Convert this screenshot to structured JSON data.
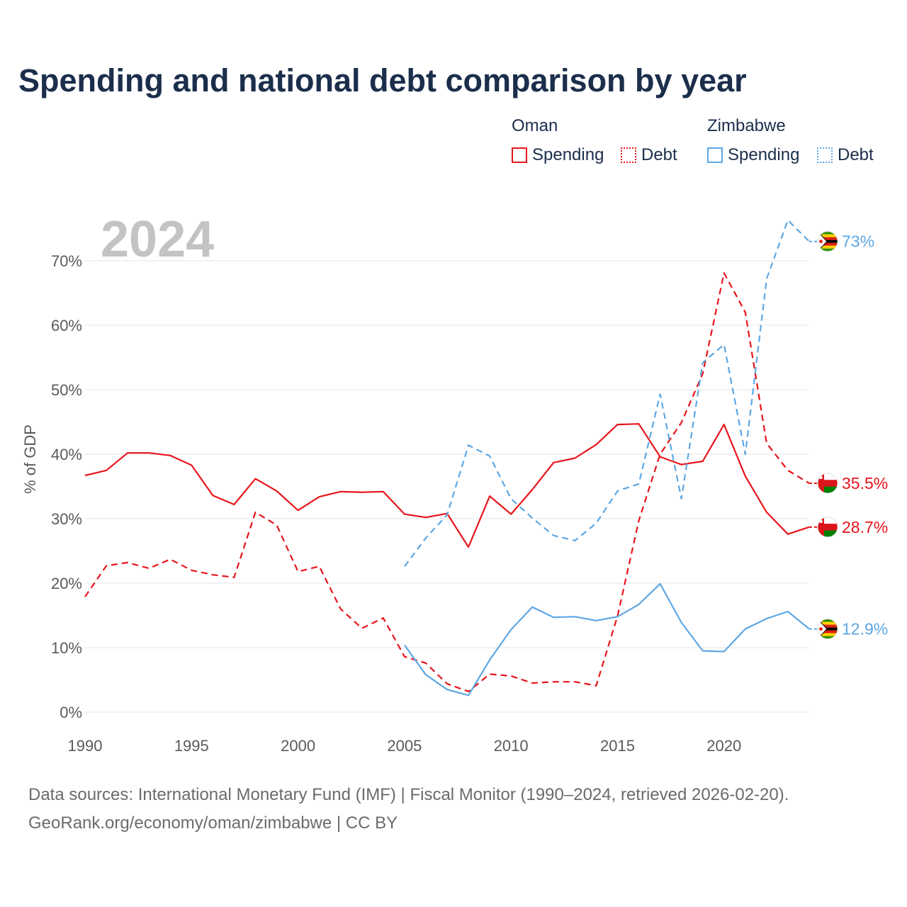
{
  "title": "Spending and national debt comparison by year",
  "colors": {
    "oman": "#e8141b",
    "zimbabwe": "#5da7e4",
    "grid": "#e6e6e6",
    "text": "#1b2e4b",
    "muted": "#6b6b6b",
    "watermark": "#c3c3c3"
  },
  "legend": {
    "oman": {
      "title": "Oman",
      "spending": "Spending",
      "debt": "Debt"
    },
    "zimbabwe": {
      "title": "Zimbabwe",
      "spending": "Spending",
      "debt": "Debt"
    }
  },
  "footer": {
    "line1": "Data sources: International Monetary Fund (IMF) | Fiscal Monitor (1990–2024, retrieved 2026-02-20).",
    "line2": "GeoRank.org/economy/oman/zimbabwe | CC BY"
  },
  "chart_data": {
    "type": "line",
    "title": "Spending and national debt comparison by year",
    "current_year_label": "2024",
    "ylabel": "% of GDP",
    "xlabel": "",
    "xlim": [
      1990,
      2024
    ],
    "ylim": [
      0,
      77
    ],
    "y_ticks": [
      0,
      10,
      20,
      30,
      40,
      50,
      60,
      70
    ],
    "y_tick_labels": [
      "0%",
      "10%",
      "20%",
      "30%",
      "40%",
      "50%",
      "60%",
      "70%"
    ],
    "x_ticks": [
      1990,
      1995,
      2000,
      2005,
      2010,
      2015,
      2020
    ],
    "x_tick_labels": [
      "1990",
      "1995",
      "2000",
      "2005",
      "2010",
      "2015",
      "2020"
    ],
    "grid": true,
    "series": [
      {
        "name": "Oman Spending",
        "country": "oman",
        "style": "solid",
        "x": [
          1990,
          1991,
          1992,
          1993,
          1994,
          1995,
          1996,
          1997,
          1998,
          1999,
          2000,
          2001,
          2002,
          2003,
          2004,
          2005,
          2006,
          2007,
          2008,
          2009,
          2010,
          2011,
          2012,
          2013,
          2014,
          2015,
          2016,
          2017,
          2018,
          2019,
          2020,
          2021,
          2022,
          2023,
          2024
        ],
        "values": [
          36.7,
          37.5,
          40.2,
          40.2,
          39.8,
          38.3,
          33.6,
          32.2,
          36.2,
          34.3,
          31.3,
          33.4,
          34.2,
          34.1,
          34.2,
          30.7,
          30.2,
          30.8,
          25.6,
          33.5,
          30.7,
          34.5,
          38.7,
          39.4,
          41.5,
          44.6,
          44.7,
          39.6,
          38.4,
          38.9,
          44.6,
          36.6,
          31.0,
          27.6,
          28.7
        ],
        "end_label": "28.7%"
      },
      {
        "name": "Oman Debt",
        "country": "oman",
        "style": "dashed",
        "x": [
          1990,
          1991,
          1992,
          1993,
          1994,
          1995,
          1996,
          1997,
          1998,
          1999,
          2000,
          2001,
          2002,
          2003,
          2004,
          2005,
          2006,
          2007,
          2008,
          2009,
          2010,
          2011,
          2012,
          2013,
          2014,
          2015,
          2016,
          2017,
          2018,
          2019,
          2020,
          2021,
          2022,
          2023,
          2024
        ],
        "values": [
          17.9,
          22.7,
          23.2,
          22.3,
          23.7,
          22.0,
          21.3,
          20.9,
          31.0,
          29.0,
          21.8,
          22.6,
          16.0,
          13.0,
          14.6,
          8.6,
          7.6,
          4.4,
          3.2,
          5.9,
          5.6,
          4.5,
          4.7,
          4.7,
          4.1,
          14.9,
          29.7,
          40.0,
          44.9,
          52.5,
          68.1,
          62.0,
          41.7,
          37.5,
          35.5
        ],
        "end_label": "35.5%"
      },
      {
        "name": "Zimbabwe Spending",
        "country": "zimbabwe",
        "style": "solid",
        "x": [
          2005,
          2006,
          2007,
          2008,
          2009,
          2010,
          2011,
          2012,
          2013,
          2014,
          2015,
          2016,
          2017,
          2018,
          2019,
          2020,
          2021,
          2022,
          2023,
          2024
        ],
        "values": [
          10.4,
          5.8,
          3.5,
          2.6,
          8.1,
          12.8,
          16.3,
          14.7,
          14.8,
          14.2,
          14.8,
          16.7,
          19.9,
          13.9,
          9.5,
          9.4,
          12.9,
          14.5,
          15.6,
          12.9
        ],
        "end_label": "12.9%"
      },
      {
        "name": "Zimbabwe Debt",
        "country": "zimbabwe",
        "style": "dashed",
        "x": [
          2005,
          2006,
          2007,
          2008,
          2009,
          2010,
          2011,
          2012,
          2013,
          2014,
          2015,
          2016,
          2017,
          2018,
          2019,
          2020,
          2021,
          2022,
          2023,
          2024
        ],
        "values": [
          22.6,
          27.0,
          30.6,
          41.4,
          39.7,
          33.1,
          30.1,
          27.4,
          26.6,
          29.3,
          34.3,
          35.4,
          49.3,
          33.1,
          54.2,
          57.0,
          40.0,
          67.2,
          76.3,
          73.0
        ],
        "end_label": "73%"
      }
    ]
  }
}
